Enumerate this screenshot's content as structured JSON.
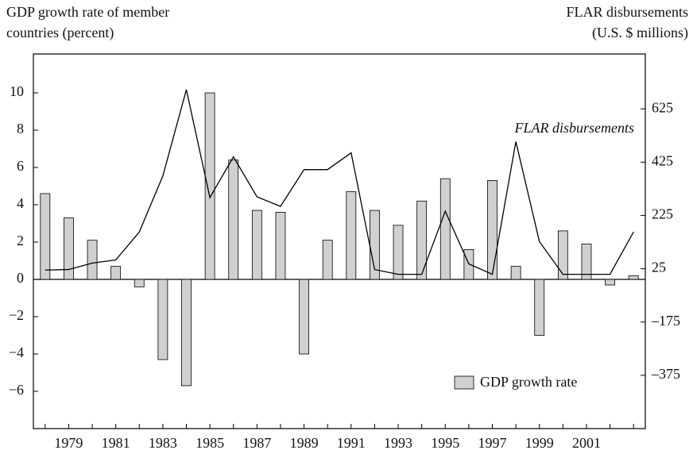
{
  "chart_data": {
    "type": "bar_line",
    "ylabel": [
      "GDP growth rate of member",
      "countries (percent)"
    ],
    "y2label": [
      "FLAR disbursements",
      "(U.S. $ millions)"
    ],
    "annotation": "FLAR disbursements",
    "categories": [
      null,
      "1979",
      null,
      "1981",
      null,
      "1983",
      null,
      "1985",
      null,
      "1987",
      null,
      "1989",
      null,
      "1991",
      null,
      "1993",
      null,
      "1995",
      null,
      "1997",
      null,
      "1999",
      null,
      "2001",
      null,
      null
    ],
    "series": [
      {
        "name": "GDP growth rate",
        "kind": "bar",
        "color": "#d0d0d0",
        "values": [
          4.6,
          3.3,
          2.1,
          0.7,
          -0.4,
          -4.3,
          -5.7,
          10.0,
          6.4,
          3.7,
          3.6,
          -4.0,
          2.1,
          4.7,
          3.7,
          2.9,
          4.2,
          5.4,
          1.6,
          5.3,
          0.7,
          -3.0,
          2.6,
          1.9,
          -0.3,
          0.2
        ]
      },
      {
        "name": "FLAR disbursements",
        "kind": "line",
        "axis": "y2",
        "color": "#000000",
        "values": [
          20,
          22,
          46,
          58,
          163,
          373,
          697,
          292,
          445,
          295,
          259,
          397,
          397,
          460,
          22,
          4,
          4,
          241,
          43,
          4,
          502,
          127,
          4,
          4,
          4,
          163
        ]
      }
    ],
    "ylim": [
      -8,
      12
    ],
    "yticks": [
      {
        "value": -6,
        "label": "−6"
      },
      {
        "value": -4,
        "label": "−4"
      },
      {
        "value": -2,
        "label": "−2"
      },
      0,
      2,
      4,
      6,
      8,
      10
    ],
    "y2lim": [
      -575,
      825
    ],
    "y2ticks": [
      {
        "value": -375,
        "label": "–375"
      },
      {
        "value": -175,
        "label": "–175"
      },
      25,
      225,
      425,
      625
    ],
    "legend": "lower right"
  }
}
